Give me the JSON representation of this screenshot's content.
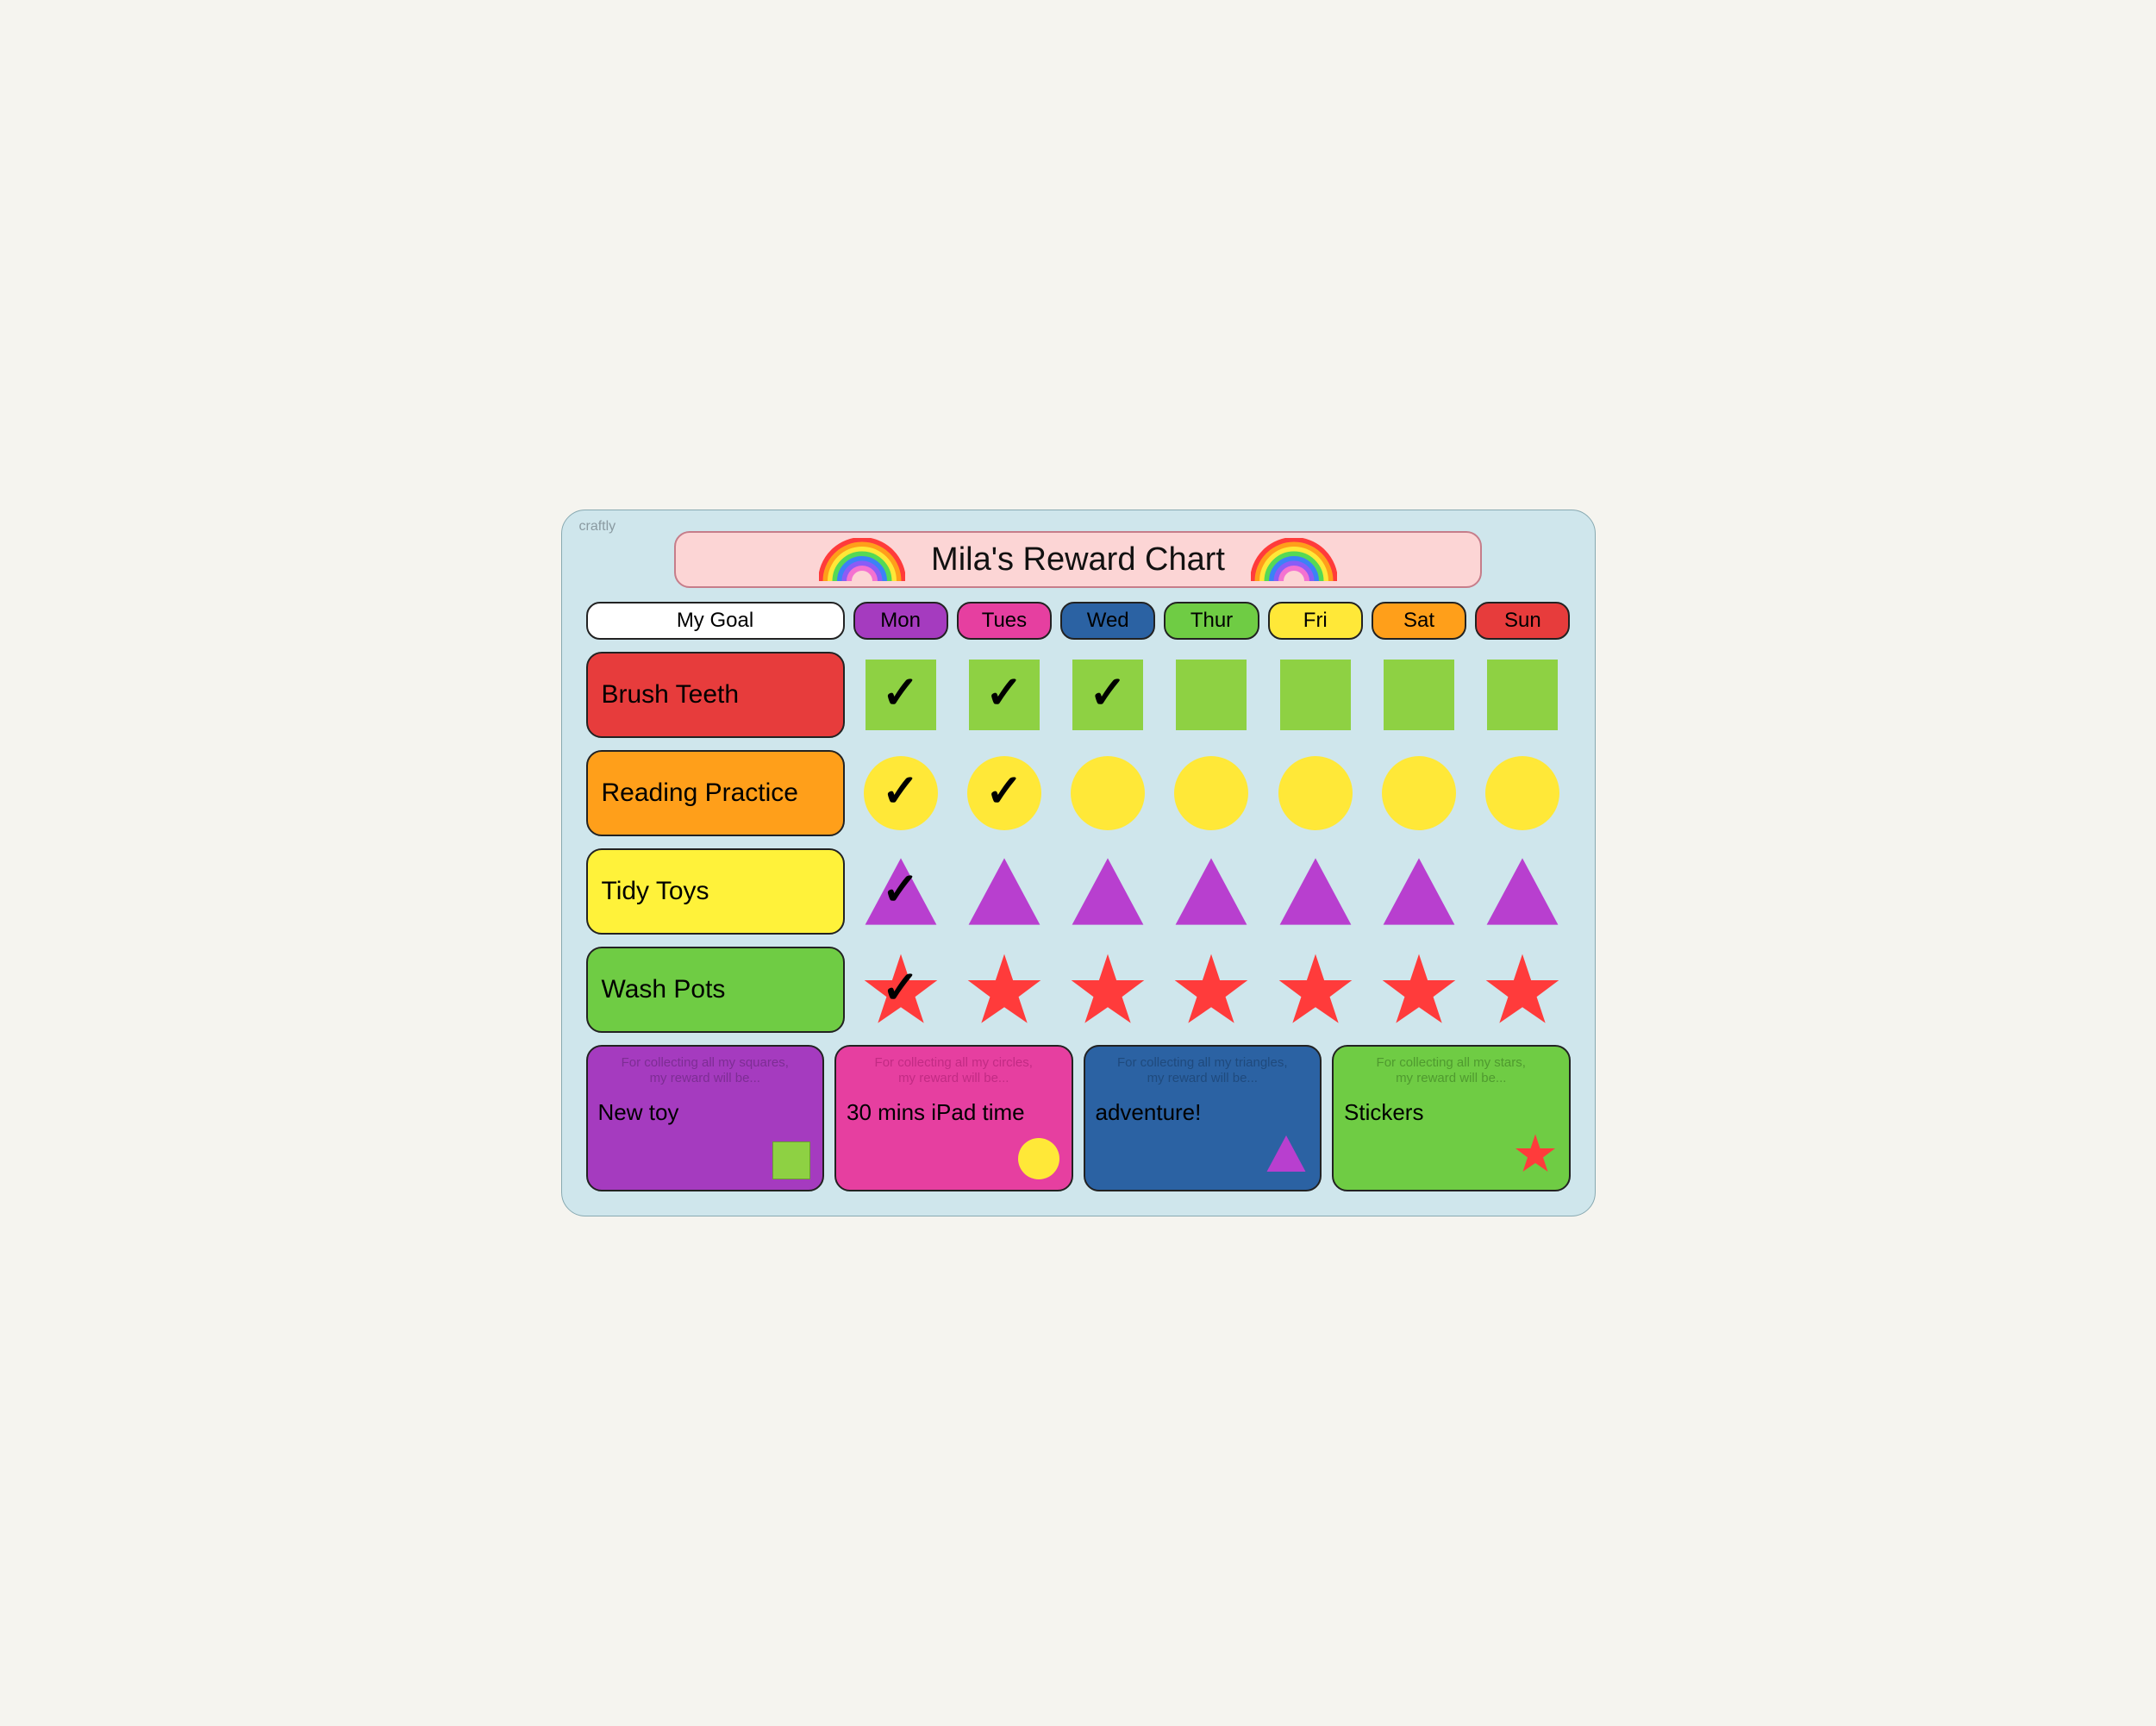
{
  "brand": "craftly",
  "title": "Mila's Reward Chart",
  "titlebar": {
    "bg": "#fcd5d5",
    "border": "#c67d8a"
  },
  "rainbow_colors": [
    "#ff3b3b",
    "#ff9f1a",
    "#ffe838",
    "#55d955",
    "#3b82f6",
    "#8b5cf6",
    "#f472d0"
  ],
  "board_bg": "#cfe6ec",
  "my_goal_label": "My Goal",
  "days": [
    {
      "label": "Mon",
      "bg": "#a53bbf"
    },
    {
      "label": "Tues",
      "bg": "#e63fa0"
    },
    {
      "label": "Wed",
      "bg": "#2b62a3"
    },
    {
      "label": "Thur",
      "bg": "#6fcc44"
    },
    {
      "label": "Fri",
      "bg": "#ffe838"
    },
    {
      "label": "Sat",
      "bg": "#ff9f1a"
    },
    {
      "label": "Sun",
      "bg": "#e73c3c"
    }
  ],
  "goals": [
    {
      "label": "Brush Teeth",
      "bg": "#e73c3c",
      "shape": "square",
      "shape_color": "#8ed143",
      "checks": [
        true,
        true,
        true,
        false,
        false,
        false,
        false
      ]
    },
    {
      "label": "Reading Practice",
      "bg": "#ff9f1a",
      "shape": "circle",
      "shape_color": "#ffe838",
      "checks": [
        true,
        true,
        false,
        false,
        false,
        false,
        false
      ]
    },
    {
      "label": "Tidy Toys",
      "bg": "#fff23a",
      "shape": "triangle",
      "shape_color": "#b83fcf",
      "checks": [
        true,
        false,
        false,
        false,
        false,
        false,
        false
      ]
    },
    {
      "label": "Wash Pots",
      "bg": "#6fcc44",
      "shape": "star",
      "shape_color": "#ff3b3b",
      "checks": [
        true,
        false,
        false,
        false,
        false,
        false,
        false
      ]
    }
  ],
  "rewards": [
    {
      "bg": "#a53bbf",
      "fg": "#7d2d94",
      "top1": "For collecting all my squares,",
      "top2": "my reward will be...",
      "text": "New toy",
      "shape": "square",
      "shape_color": "#8ed143"
    },
    {
      "bg": "#e63fa0",
      "fg": "#c22b84",
      "top1": "For collecting all my circles,",
      "top2": "my reward will be...",
      "text": "30 mins iPad time",
      "shape": "circle",
      "shape_color": "#ffe838"
    },
    {
      "bg": "#2b62a3",
      "fg": "#1f4a7d",
      "top1": "For collecting all my triangles,",
      "top2": "my reward will be...",
      "text": "adventure!",
      "shape": "triangle",
      "shape_color": "#b83fcf"
    },
    {
      "bg": "#6fcc44",
      "fg": "#4f9a2f",
      "top1": "For collecting all my stars,",
      "top2": "my reward will be...",
      "text": "Stickers",
      "shape": "star",
      "shape_color": "#ff3b3b"
    }
  ]
}
